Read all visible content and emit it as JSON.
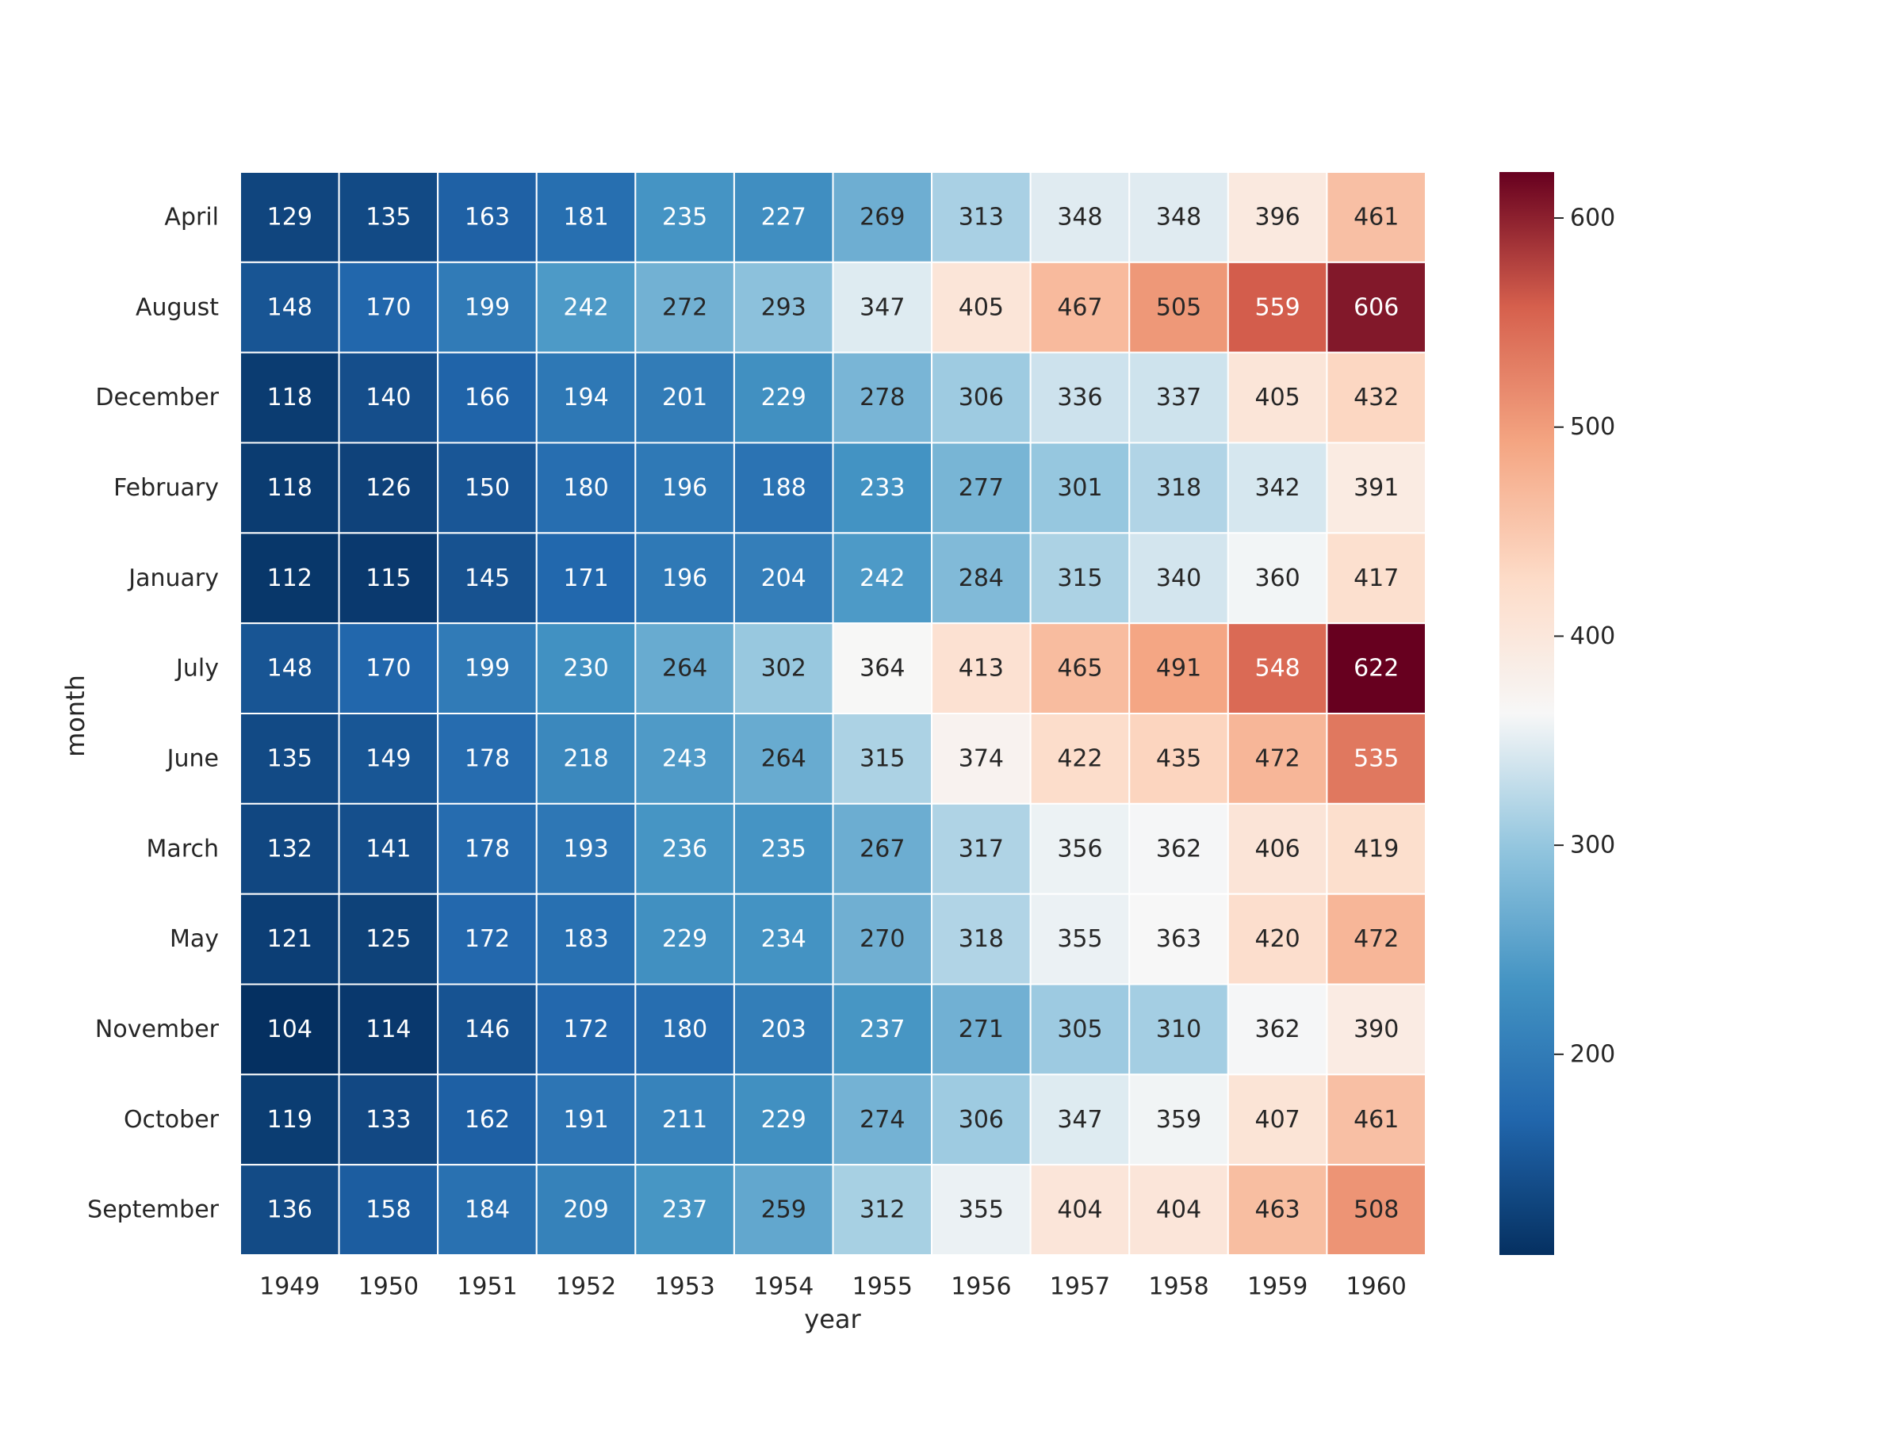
{
  "chart_data": {
    "type": "heatmap",
    "xlabel": "year",
    "ylabel": "month",
    "x": [
      "1949",
      "1950",
      "1951",
      "1952",
      "1953",
      "1954",
      "1955",
      "1956",
      "1957",
      "1958",
      "1959",
      "1960"
    ],
    "y": [
      "April",
      "August",
      "December",
      "February",
      "January",
      "July",
      "June",
      "March",
      "May",
      "November",
      "October",
      "September"
    ],
    "values": [
      [
        129,
        135,
        163,
        181,
        235,
        227,
        269,
        313,
        348,
        348,
        396,
        461
      ],
      [
        148,
        170,
        199,
        242,
        272,
        293,
        347,
        405,
        467,
        505,
        559,
        606
      ],
      [
        118,
        140,
        166,
        194,
        201,
        229,
        278,
        306,
        336,
        337,
        405,
        432
      ],
      [
        118,
        126,
        150,
        180,
        196,
        188,
        233,
        277,
        301,
        318,
        342,
        391
      ],
      [
        112,
        115,
        145,
        171,
        196,
        204,
        242,
        284,
        315,
        340,
        360,
        417
      ],
      [
        148,
        170,
        199,
        230,
        264,
        302,
        364,
        413,
        465,
        491,
        548,
        622
      ],
      [
        135,
        149,
        178,
        218,
        243,
        264,
        315,
        374,
        422,
        435,
        472,
        535
      ],
      [
        132,
        141,
        178,
        193,
        236,
        235,
        267,
        317,
        356,
        362,
        406,
        419
      ],
      [
        121,
        125,
        172,
        183,
        229,
        234,
        270,
        318,
        355,
        363,
        420,
        472
      ],
      [
        104,
        114,
        146,
        172,
        180,
        203,
        237,
        271,
        305,
        310,
        362,
        390
      ],
      [
        119,
        133,
        162,
        191,
        211,
        229,
        274,
        306,
        347,
        359,
        407,
        461
      ],
      [
        136,
        158,
        184,
        209,
        237,
        259,
        312,
        355,
        404,
        404,
        463,
        508
      ]
    ],
    "colormap": "RdBu_r",
    "colorbar": {
      "ticks": [
        "200",
        "300",
        "400",
        "500",
        "600"
      ],
      "range": [
        104,
        622
      ]
    },
    "annotated": true
  }
}
